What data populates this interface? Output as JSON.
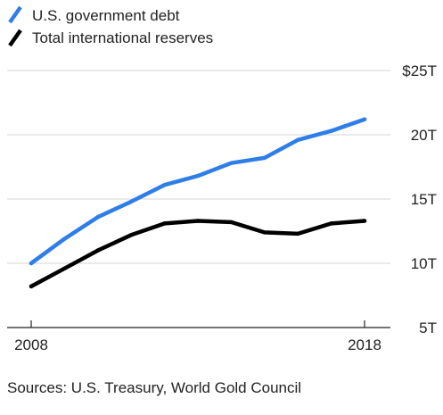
{
  "chart_data": {
    "type": "line",
    "title": "",
    "xlabel": "",
    "ylabel": "",
    "x": [
      2008,
      2009,
      2010,
      2011,
      2012,
      2013,
      2014,
      2015,
      2016,
      2017,
      2018
    ],
    "xticks": [
      2008,
      2018
    ],
    "xtick_labels": [
      "2008",
      "2018"
    ],
    "ylim": [
      5,
      25
    ],
    "yticks": [
      5,
      10,
      15,
      20,
      25
    ],
    "ytick_labels": [
      "5T",
      "10T",
      "15T",
      "20T",
      "$25T"
    ],
    "grid": "horizontal",
    "legend_position": "top-left",
    "series": [
      {
        "name": "U.S. government debt",
        "color": "#2f7ee8",
        "values": [
          10.0,
          11.9,
          13.6,
          14.8,
          16.1,
          16.8,
          17.8,
          18.2,
          19.6,
          20.3,
          21.2
        ]
      },
      {
        "name": "Total international reserves",
        "color": "#000000",
        "values": [
          8.2,
          9.6,
          11.0,
          12.2,
          13.1,
          13.3,
          13.2,
          12.4,
          12.3,
          13.1,
          13.3
        ]
      }
    ],
    "source": "Sources: U.S. Treasury, World Gold Council"
  }
}
